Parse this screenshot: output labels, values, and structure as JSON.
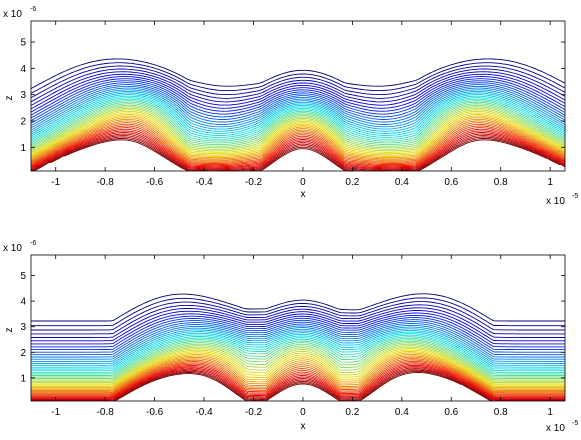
{
  "chart_data": [
    {
      "type": "contour",
      "title": "",
      "xlabel": "x",
      "ylabel": "z",
      "x_exponent_label": "x 10",
      "x_exponent": "-5",
      "y_exponent_label": "x 10",
      "y_exponent": "-6",
      "xlim": [
        -1.1,
        1.06
      ],
      "ylim": [
        0.1,
        5.8
      ],
      "x_ticks": [
        -1,
        -0.8,
        -0.6,
        -0.4,
        -0.2,
        0,
        0.2,
        0.4,
        0.6,
        0.8,
        1
      ],
      "x_tick_labels": [
        "-1",
        "-0.8",
        "-0.6",
        "-0.4",
        "-0.2",
        "0",
        "0.2",
        "0.4",
        "0.6",
        "0.8",
        "1"
      ],
      "y_ticks": [
        1,
        2,
        3,
        4,
        5
      ],
      "y_tick_labels": [
        "1",
        "2",
        "3",
        "4",
        "5"
      ],
      "grid": false,
      "colormap": "jet",
      "surface_bumps": [
        {
          "center_x": -0.78,
          "peak_z": 1.0,
          "half_width": 0.32
        },
        {
          "center_x": 0.0,
          "peak_z": 0.55,
          "half_width": 0.17
        },
        {
          "center_x": 0.78,
          "peak_z": 1.0,
          "half_width": 0.32
        }
      ],
      "field_centers": [
        {
          "x": -0.66,
          "z": 2.1,
          "strength": 1.0
        },
        {
          "x": 0.0,
          "z": 1.6,
          "strength": 1.0
        },
        {
          "x": 0.66,
          "z": 2.1,
          "strength": 1.0
        }
      ]
    },
    {
      "type": "contour",
      "title": "",
      "xlabel": "x",
      "ylabel": "z",
      "x_exponent_label": "x 10",
      "x_exponent": "-5",
      "y_exponent_label": "x 10",
      "y_exponent": "-6",
      "xlim": [
        -1.1,
        1.06
      ],
      "ylim": [
        0.1,
        5.8
      ],
      "x_ticks": [
        -1,
        -0.8,
        -0.6,
        -0.4,
        -0.2,
        0,
        0.2,
        0.4,
        0.6,
        0.8,
        1
      ],
      "x_tick_labels": [
        "-1",
        "-0.8",
        "-0.6",
        "-0.4",
        "-0.2",
        "0",
        "0.2",
        "0.4",
        "0.6",
        "0.8",
        "1"
      ],
      "y_ticks": [
        1,
        2,
        3,
        4,
        5
      ],
      "y_tick_labels": [
        "1",
        "2",
        "3",
        "4",
        "5"
      ],
      "grid": false,
      "colormap": "jet",
      "surface_bumps": [
        {
          "center_x": -0.5,
          "peak_z": 1.0,
          "half_width": 0.27
        },
        {
          "center_x": 0.0,
          "peak_z": 0.55,
          "half_width": 0.15
        },
        {
          "center_x": 0.5,
          "peak_z": 1.0,
          "half_width": 0.27
        }
      ],
      "field_centers": [
        {
          "x": -0.32,
          "z": 1.9,
          "strength": 0.8
        },
        {
          "x": 0.0,
          "z": 2.0,
          "strength": 0.8
        },
        {
          "x": 0.35,
          "z": 1.9,
          "strength": 0.8
        }
      ]
    }
  ]
}
